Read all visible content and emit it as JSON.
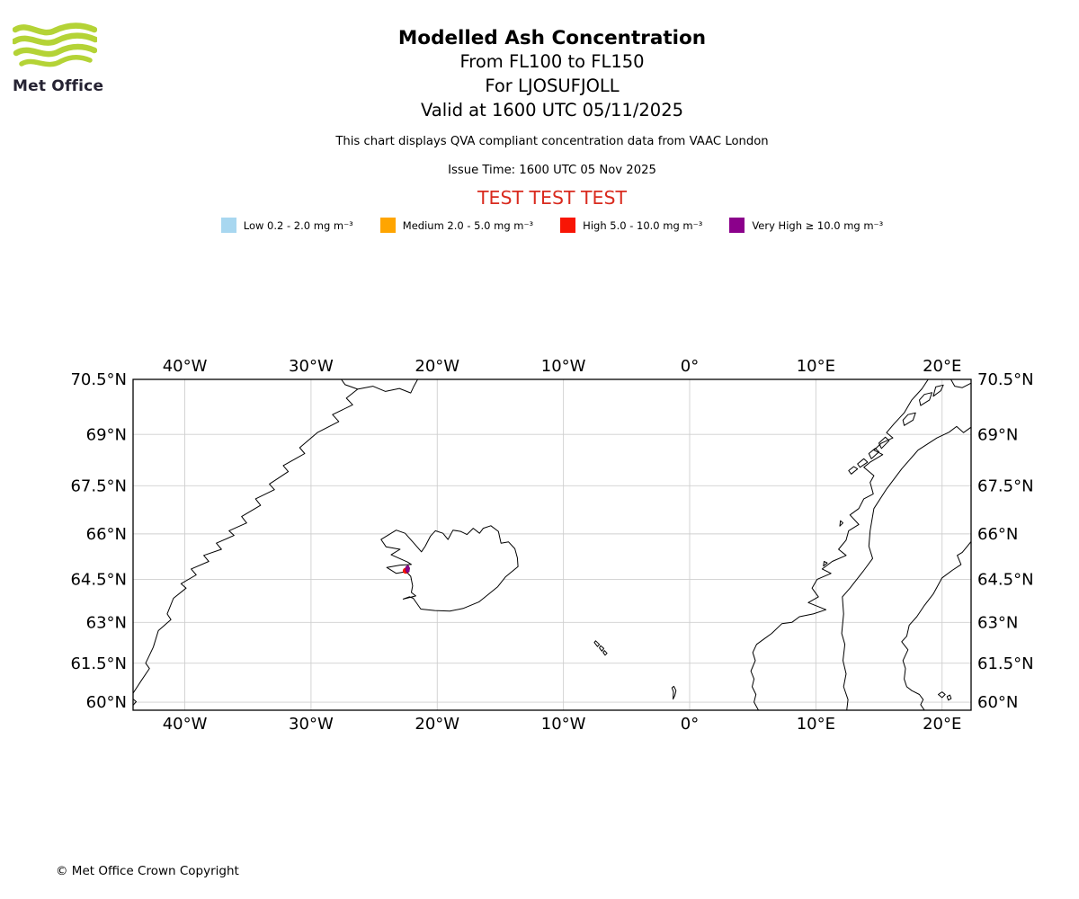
{
  "colors": {
    "logo_green": "#b4d336",
    "test_red": "#d92b1f",
    "grid_gray": "#cfcfcf",
    "coast_black": "#000000"
  },
  "header": {
    "logo_text": "Met Office",
    "title": "Modelled Ash Concentration",
    "subtitle_levels": "From FL100 to FL150",
    "subtitle_volcano": "For LJOSUFJOLL",
    "subtitle_valid": "Valid at 1600 UTC 05/11/2025",
    "description": "This chart displays QVA compliant concentration data from VAAC London",
    "issue_time": "Issue Time: 1600 UTC 05 Nov 2025",
    "test_banner": "TEST TEST TEST"
  },
  "legend": {
    "items": [
      {
        "name": "low",
        "label": "Low 0.2 - 2.0 mg m⁻³",
        "color": "#a8d7f0"
      },
      {
        "name": "medium",
        "label": "Medium 2.0 - 5.0 mg m⁻³",
        "color": "#ffa500"
      },
      {
        "name": "high",
        "label": "High 5.0 - 10.0 mg m⁻³",
        "color": "#f81505"
      },
      {
        "name": "very-high",
        "label": "Very High ≥ 10.0 mg m⁻³",
        "color": "#8b008b"
      }
    ]
  },
  "chart_data": {
    "type": "map",
    "projection": "mercator",
    "grid": true,
    "extent": {
      "lon_min": -44.1,
      "lon_max": 22.3,
      "lat_min": 59.68,
      "lat_max": 70.5
    },
    "lon_ticks": [
      {
        "value": -40,
        "label": "40°W"
      },
      {
        "value": -30,
        "label": "30°W"
      },
      {
        "value": -20,
        "label": "20°W"
      },
      {
        "value": -10,
        "label": "10°W"
      },
      {
        "value": 0,
        "label": "0°"
      },
      {
        "value": 10,
        "label": "10°E"
      },
      {
        "value": 20,
        "label": "20°E"
      }
    ],
    "lat_ticks": [
      {
        "value": 70.5,
        "label": "70.5°N"
      },
      {
        "value": 69,
        "label": "69°N"
      },
      {
        "value": 67.5,
        "label": "67.5°N"
      },
      {
        "value": 66,
        "label": "66°N"
      },
      {
        "value": 64.5,
        "label": "64.5°N"
      },
      {
        "value": 63,
        "label": "63°N"
      },
      {
        "value": 61.5,
        "label": "61.5°N"
      },
      {
        "value": 60,
        "label": "60°N"
      }
    ],
    "ash_cloud": {
      "volcano": "LJOSUFJOLL",
      "flight_levels": "FL100 to FL150",
      "valid_time": "1600 UTC 05/11/2025",
      "lon": -22.35,
      "lat": 64.85,
      "colors": [
        "#f81505",
        "#8b008b"
      ]
    }
  },
  "footer": {
    "copyright": "© Met Office Crown Copyright"
  }
}
